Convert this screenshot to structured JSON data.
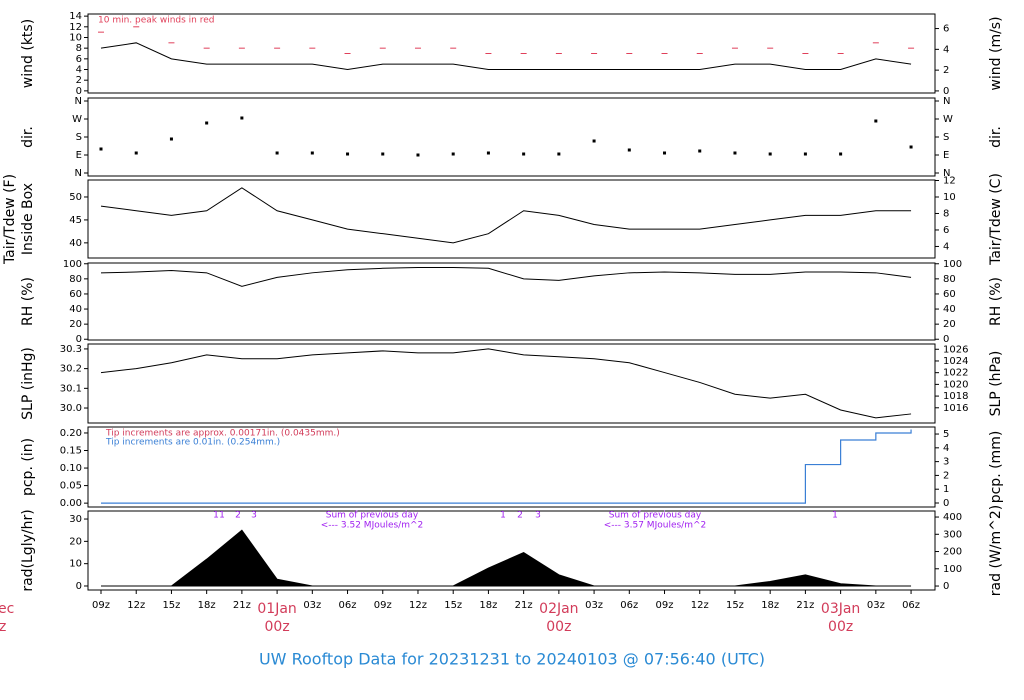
{
  "chart_data": [
    {
      "type": "line",
      "y_label": "wind (kts)",
      "y2_label": "wind (m/s)",
      "ylim": [
        -0.4,
        14.4
      ],
      "yticks": [
        0,
        2,
        4,
        6,
        8,
        10,
        12,
        14
      ],
      "y2lim": [
        -0.2,
        7.4
      ],
      "y2ticks": [
        0,
        2,
        4,
        6
      ],
      "annotations": [
        "10 min. peak winds in red"
      ],
      "series": [
        {
          "color": "#000000",
          "values": [
            8,
            9,
            6,
            5,
            5,
            5,
            5,
            4,
            5,
            5,
            5,
            4,
            4,
            4,
            4,
            4,
            4,
            4,
            5,
            5,
            4,
            4,
            6,
            5
          ]
        },
        {
          "color": "#e0405a",
          "marker": "dash",
          "values": [
            11,
            12,
            9,
            8,
            8,
            8,
            8,
            7,
            8,
            8,
            8,
            7,
            7,
            7,
            7,
            7,
            7,
            7,
            8,
            8,
            7,
            7,
            9,
            8
          ]
        }
      ]
    },
    {
      "type": "scatter",
      "y_label": "dir.",
      "y2_label": "dir.",
      "ylim": [
        -15,
        375
      ],
      "yticks": [
        {
          "value": 0,
          "label": "N"
        },
        {
          "value": 90,
          "label": "E"
        },
        {
          "value": 180,
          "label": "S"
        },
        {
          "value": 270,
          "label": "W"
        },
        {
          "value": 360,
          "label": "N"
        }
      ],
      "series": [
        {
          "color": "#000000",
          "values": [
            120,
            100,
            170,
            250,
            275,
            100,
            100,
            95,
            95,
            90,
            95,
            100,
            95,
            95,
            160,
            115,
            100,
            110,
            100,
            95,
            95,
            95,
            260,
            130
          ]
        }
      ]
    },
    {
      "type": "line",
      "y_label": "Tair/Tdew (F)",
      "y_sublabel": "Inside Box",
      "y2_label": "Tair/Tdew (C)",
      "ylim": [
        36.7,
        53.7
      ],
      "yticks": [
        40,
        45,
        50
      ],
      "y2lim": [
        2.6,
        12.06
      ],
      "y2ticks": [
        4,
        6,
        8,
        10,
        12
      ],
      "series": [
        {
          "color": "#000000",
          "values": [
            48,
            47,
            46,
            47,
            52,
            47,
            45,
            43,
            42,
            41,
            40,
            42,
            47,
            46,
            44,
            43,
            43,
            43,
            44,
            45,
            46,
            46,
            47,
            47
          ]
        }
      ]
    },
    {
      "type": "line",
      "y_label": "RH (%)",
      "y2_label": "RH (%)",
      "ylim": [
        -1,
        101
      ],
      "yticks": [
        0,
        20,
        40,
        60,
        80,
        100
      ],
      "y2lim": [
        -1,
        101
      ],
      "y2ticks": [
        0,
        20,
        40,
        60,
        80,
        100
      ],
      "series": [
        {
          "color": "#000000",
          "values": [
            88,
            89,
            91,
            88,
            70,
            82,
            88,
            92,
            94,
            95,
            95,
            94,
            80,
            78,
            84,
            88,
            89,
            88,
            86,
            86,
            89,
            89,
            88,
            82
          ]
        }
      ]
    },
    {
      "type": "line",
      "y_label": "SLP (inHg)",
      "y2_label": "SLP (hPa)",
      "ylim": [
        29.924,
        30.325
      ],
      "yticks": [
        {
          "value": 30,
          "label": "30.0"
        },
        30.1,
        30.2,
        30.3
      ],
      "y2lim": [
        1013.4,
        1026.9
      ],
      "y2ticks": [
        1016,
        1018,
        1020,
        1022,
        1024,
        1026
      ],
      "series": [
        {
          "color": "#000000",
          "values": [
            30.18,
            30.2,
            30.23,
            30.27,
            30.25,
            30.25,
            30.27,
            30.28,
            30.29,
            30.28,
            30.28,
            30.3,
            30.27,
            30.26,
            30.25,
            30.23,
            30.18,
            30.13,
            30.07,
            30.05,
            30.07,
            29.99,
            29.95,
            29.97
          ]
        }
      ]
    },
    {
      "type": "step",
      "y_label": "pcp. (in)",
      "y2_label": "pcp. (mm)",
      "ylim": [
        -0.011,
        0.217
      ],
      "yticks": [
        {
          "value": 0,
          "label": "0.00"
        },
        0.05,
        {
          "value": 0.1,
          "label": "0.10"
        },
        0.15,
        {
          "value": 0.2,
          "label": "0.20"
        }
      ],
      "y2lim": [
        -0.29,
        5.51
      ],
      "y2ticks": [
        0,
        1,
        2,
        3,
        4,
        5
      ],
      "annotations": [
        "Tip increments are approx. 0.00171in. (0.0435mm.)",
        "Tip increments are 0.01in. (0.254mm.)"
      ],
      "series": [
        {
          "color": "#3a7fd5",
          "values": [
            0,
            0,
            0,
            0,
            0,
            0,
            0,
            0,
            0,
            0,
            0,
            0,
            0,
            0,
            0,
            0,
            0,
            0,
            0,
            0,
            0.11,
            0.18,
            0.2,
            0.21
          ]
        }
      ]
    },
    {
      "type": "area",
      "y_label": "rad(Lgly/hr)",
      "y2_label": "rad (W/m^2)",
      "ylim": [
        -1.8,
        33.6
      ],
      "yticks": [
        0,
        10,
        20,
        30
      ],
      "y2lim": [
        -23,
        435
      ],
      "y2ticks": [
        0,
        100,
        200,
        300,
        400
      ],
      "annotations": [
        "1",
        "1",
        "2",
        "3",
        "Sum of previous day",
        "<--- 3.52 MJoules/m^2",
        "1",
        "2",
        "3",
        "Sum of previous day",
        "<--- 3.57 MJoules/m^2",
        "1"
      ],
      "series": [
        {
          "color": "#000000",
          "values": [
            0,
            0,
            0,
            12,
            25,
            3,
            0,
            0,
            0,
            0,
            0,
            8,
            15,
            5,
            0,
            0,
            0,
            0,
            0,
            2,
            5,
            1,
            0,
            0
          ]
        }
      ]
    }
  ],
  "x_axis": {
    "categories": [
      "09z",
      "12z",
      "15z",
      "18z",
      "21z",
      "01Jan",
      "03z",
      "06z",
      "09z",
      "12z",
      "15z",
      "18z",
      "21z",
      "02Jan",
      "03z",
      "06z",
      "09z",
      "12z",
      "15z",
      "18z",
      "21z",
      "03Jan",
      "03z",
      "06z"
    ],
    "day_hour_label": "00z",
    "cut_labels": [
      "ec",
      "z"
    ]
  },
  "footer": "UW Rooftop Data for 20231231  to  20240103 @ 07:56:40  (UTC)"
}
